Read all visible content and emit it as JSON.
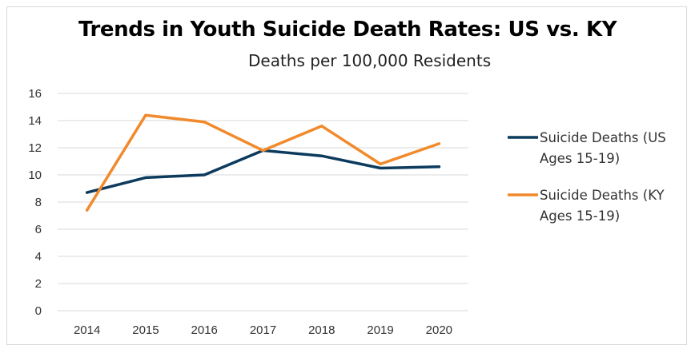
{
  "chart_data": {
    "type": "line",
    "title": "Trends in Youth Suicide Death Rates: US vs. KY",
    "subtitle": "Deaths per 100,000 Residents",
    "x": [
      "2014",
      "2015",
      "2016",
      "2017",
      "2018",
      "2019",
      "2020"
    ],
    "ylim": [
      0,
      16
    ],
    "yticks": [
      "0",
      "2",
      "4",
      "6",
      "8",
      "10",
      "12",
      "14",
      "16"
    ],
    "grid": true,
    "legend_position": "right",
    "series": [
      {
        "name_lines": [
          "Suicide Deaths (US",
          "Ages 15-19)"
        ],
        "color": "#0d3b5e",
        "values": [
          8.7,
          9.8,
          10.0,
          11.8,
          11.4,
          10.5,
          10.6
        ]
      },
      {
        "name_lines": [
          "Suicide Deaths (KY",
          "Ages 15-19)"
        ],
        "color": "#f08a2c",
        "values": [
          7.4,
          14.4,
          13.9,
          11.8,
          13.6,
          10.8,
          12.3
        ]
      }
    ]
  }
}
